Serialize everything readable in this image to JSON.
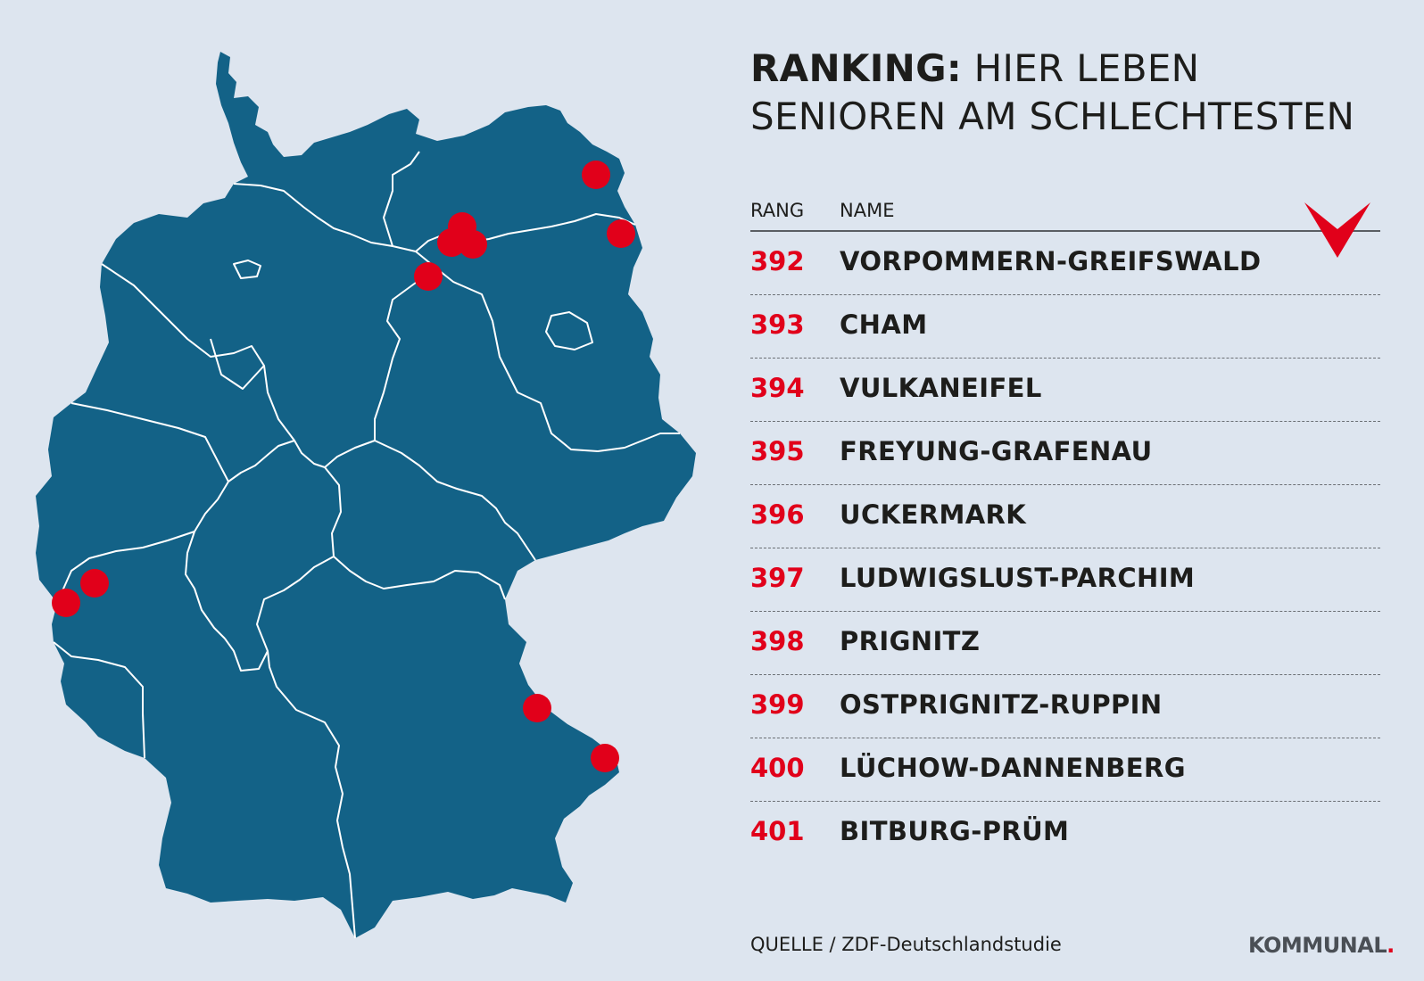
{
  "headline": {
    "strong": "RANKING:",
    "light_line1": " HIER LEBEN",
    "light_line2": "SENIOREN AM SCHLECHTESTEN"
  },
  "table": {
    "header_rank": "RANG",
    "header_name": "NAME",
    "rows": [
      {
        "rank": "392",
        "name": "VORPOMMERN-GREIFSWALD"
      },
      {
        "rank": "393",
        "name": "CHAM"
      },
      {
        "rank": "394",
        "name": "VULKANEIFEL"
      },
      {
        "rank": "395",
        "name": "FREYUNG-GRAFENAU"
      },
      {
        "rank": "396",
        "name": "UCKERMARK"
      },
      {
        "rank": "397",
        "name": "LUDWIGSLUST-PARCHIM"
      },
      {
        "rank": "398",
        "name": "PRIGNITZ"
      },
      {
        "rank": "399",
        "name": "OSTPRIGNITZ-RUPPIN"
      },
      {
        "rank": "400",
        "name": "LÜCHOW-DANNENBERG"
      },
      {
        "rank": "401",
        "name": "BITBURG-PRÜM"
      }
    ]
  },
  "source": "QUELLE / ZDF-Deutschlandstudie",
  "logo": {
    "text": "KOMMUNAL",
    "dot": "."
  },
  "colors": {
    "background": "#dde5ef",
    "map_fill": "#136287",
    "border": "#ffffff",
    "marker": "#e1001a",
    "accent": "#e1001a"
  }
}
